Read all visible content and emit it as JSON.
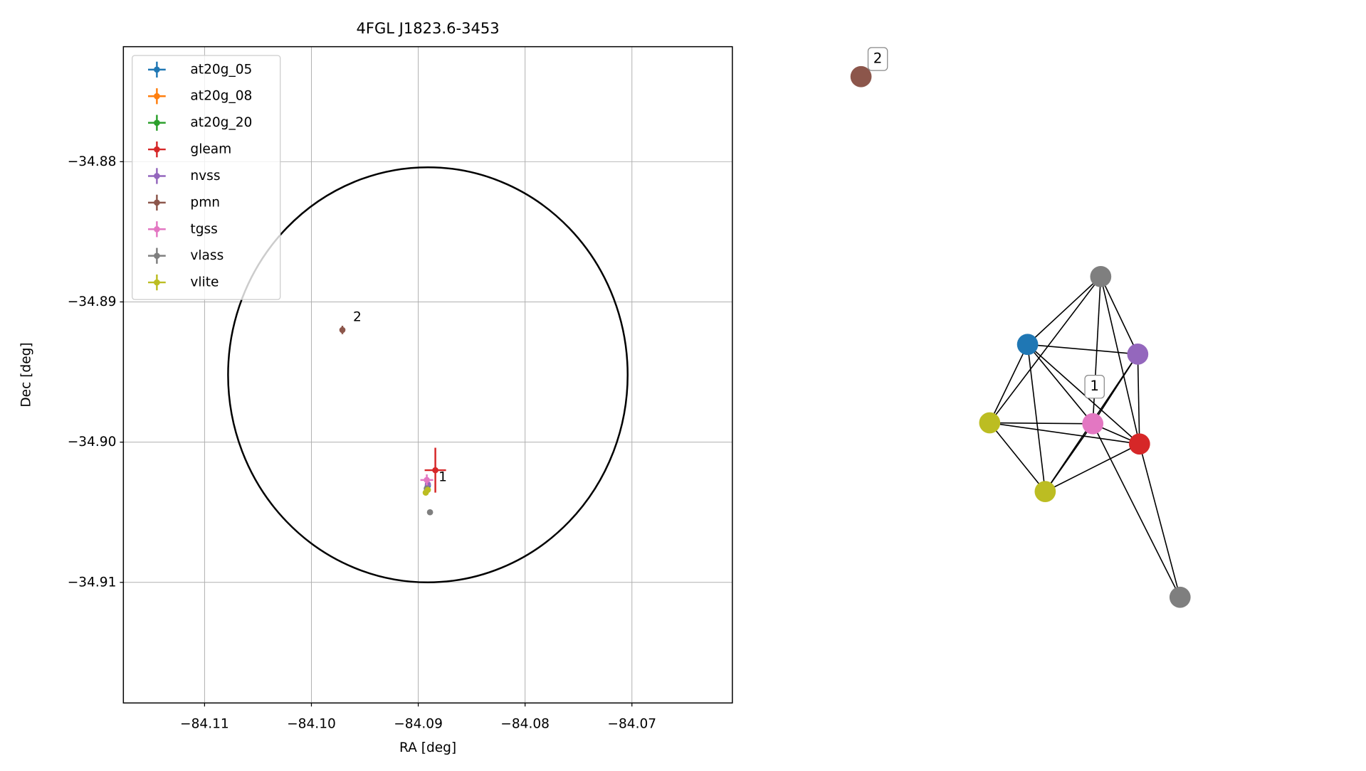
{
  "chart_data": [
    {
      "type": "errorbar",
      "title": "4FGL J1823.6-3453",
      "x_label": "RA [deg]",
      "y_label": "Dec [deg]",
      "xlim": [
        -84.1176,
        -84.0606
      ],
      "ylim": [
        -34.9186,
        -34.8718
      ],
      "xticks": [
        {
          "value": -84.11,
          "label": "−84.11"
        },
        {
          "value": -84.1,
          "label": "−84.10"
        },
        {
          "value": -84.09,
          "label": "−84.09"
        },
        {
          "value": -84.08,
          "label": "−84.08"
        },
        {
          "value": -84.07,
          "label": "−84.07"
        }
      ],
      "yticks": [
        {
          "value": -34.88,
          "label": "−34.88"
        },
        {
          "value": -34.89,
          "label": "−34.89"
        },
        {
          "value": -34.9,
          "label": "−34.90"
        },
        {
          "value": -34.91,
          "label": "−34.91"
        }
      ],
      "grid": true,
      "legend": "upper left",
      "circle": {
        "center": [
          -84.0891,
          -34.8952
        ],
        "radius_x": 0.0187,
        "radius_y": 0.0148,
        "color": "#000000"
      },
      "series": [
        {
          "name": "at20g_05",
          "color": "#1f77b4",
          "x": [
            -84.0891
          ],
          "y": [
            -34.9031
          ],
          "xerr": [
            0.0001
          ],
          "yerr": [
            0.0001
          ]
        },
        {
          "name": "at20g_08",
          "color": "#ff7f0e",
          "x": [],
          "y": [],
          "xerr": [],
          "yerr": []
        },
        {
          "name": "at20g_20",
          "color": "#2ca02c",
          "x": [],
          "y": [],
          "xerr": [],
          "yerr": []
        },
        {
          "name": "gleam",
          "color": "#d62728",
          "x": [
            -84.0884
          ],
          "y": [
            -34.902
          ],
          "xerr": [
            0.001
          ],
          "yerr": [
            0.0016
          ]
        },
        {
          "name": "nvss",
          "color": "#9467bd",
          "x": [
            -84.0891
          ],
          "y": [
            -34.903
          ],
          "xerr": [
            0.0001
          ],
          "yerr": [
            0.0001
          ]
        },
        {
          "name": "pmn",
          "color": "#8c564b",
          "x": [
            -84.0971
          ],
          "y": [
            -34.892
          ],
          "xerr": [
            0.0001
          ],
          "yerr": [
            0.0003
          ]
        },
        {
          "name": "tgss",
          "color": "#e377c2",
          "x": [
            -84.0892
          ],
          "y": [
            -34.9027
          ],
          "xerr": [
            0.0006
          ],
          "yerr": [
            0.0004
          ]
        },
        {
          "name": "vlass",
          "color": "#7f7f7f",
          "x": [
            -84.0892,
            -84.0889
          ],
          "y": [
            -34.9033,
            -34.905
          ],
          "xerr": [
            0.0001,
            0.0001
          ],
          "yerr": [
            0.0001,
            0.0001
          ]
        },
        {
          "name": "vlite",
          "color": "#bcbd22",
          "x": [
            -84.0893,
            -84.0891
          ],
          "y": [
            -34.9036,
            -34.9034
          ],
          "xerr": [
            0.0001,
            0.0001
          ],
          "yerr": [
            0.0001,
            0.0001
          ]
        }
      ],
      "annotations": [
        {
          "text": "1",
          "x": -84.0881,
          "y": -34.9025
        },
        {
          "text": "2",
          "x": -84.0961,
          "y": -34.8911
        }
      ]
    },
    {
      "type": "network",
      "nodes": [
        {
          "color": "#8c564b",
          "label": "2"
        },
        {
          "color": "#7f7f7f"
        },
        {
          "color": "#1f77b4"
        },
        {
          "color": "#9467bd"
        },
        {
          "color": "#bcbd22"
        },
        {
          "color": "#e377c2",
          "label": "1"
        },
        {
          "color": "#d62728"
        },
        {
          "color": "#bcbd22"
        },
        {
          "color": "#7f7f7f"
        }
      ],
      "edges": [
        [
          2,
          1
        ],
        [
          2,
          3
        ],
        [
          2,
          4
        ],
        [
          2,
          5
        ],
        [
          2,
          6
        ],
        [
          2,
          7
        ],
        [
          1,
          3
        ],
        [
          1,
          5
        ],
        [
          1,
          6
        ],
        [
          1,
          4
        ],
        [
          3,
          6
        ],
        [
          3,
          5
        ],
        [
          3,
          7
        ],
        [
          4,
          5
        ],
        [
          4,
          6
        ],
        [
          4,
          7
        ],
        [
          5,
          6
        ],
        [
          5,
          7
        ],
        [
          7,
          6
        ],
        [
          5,
          8
        ],
        [
          6,
          8
        ]
      ]
    }
  ]
}
